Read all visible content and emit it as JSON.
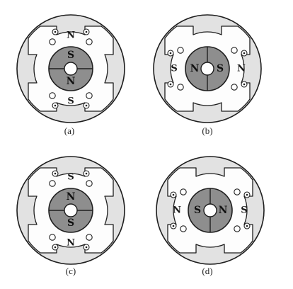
{
  "panels": [
    {
      "caption": "(a)",
      "stator_pole_labels": {
        "top": "N",
        "right": "",
        "bottom": "S",
        "left": ""
      },
      "rotor_labels": {
        "top": "S",
        "right": "",
        "bottom": "N",
        "left": ""
      },
      "rotor_split": "horizontal",
      "coils": "vertical-pair"
    },
    {
      "caption": "(b)",
      "stator_pole_labels": {
        "top": "",
        "right": "N",
        "bottom": "",
        "left": "S"
      },
      "rotor_labels": {
        "top": "",
        "right": "S",
        "bottom": "",
        "left": "N"
      },
      "rotor_split": "vertical",
      "coils": "horizontal-pair"
    },
    {
      "caption": "(c)",
      "stator_pole_labels": {
        "top": "S",
        "right": "",
        "bottom": "N",
        "left": ""
      },
      "rotor_labels": {
        "top": "N",
        "right": "",
        "bottom": "S",
        "left": ""
      },
      "rotor_split": "horizontal",
      "coils": "vertical-pair"
    },
    {
      "caption": "(d)",
      "stator_pole_labels": {
        "top": "",
        "right": "S",
        "bottom": "",
        "left": "N"
      },
      "rotor_labels": {
        "top": "",
        "right": "N",
        "bottom": "",
        "left": "S"
      },
      "rotor_split": "vertical",
      "coils": "horizontal-pair"
    }
  ],
  "colors": {
    "ring": "#e2e2e2",
    "rotor": "#8e8e8e",
    "line": "#1e1e1e",
    "background": "#ffffff"
  }
}
